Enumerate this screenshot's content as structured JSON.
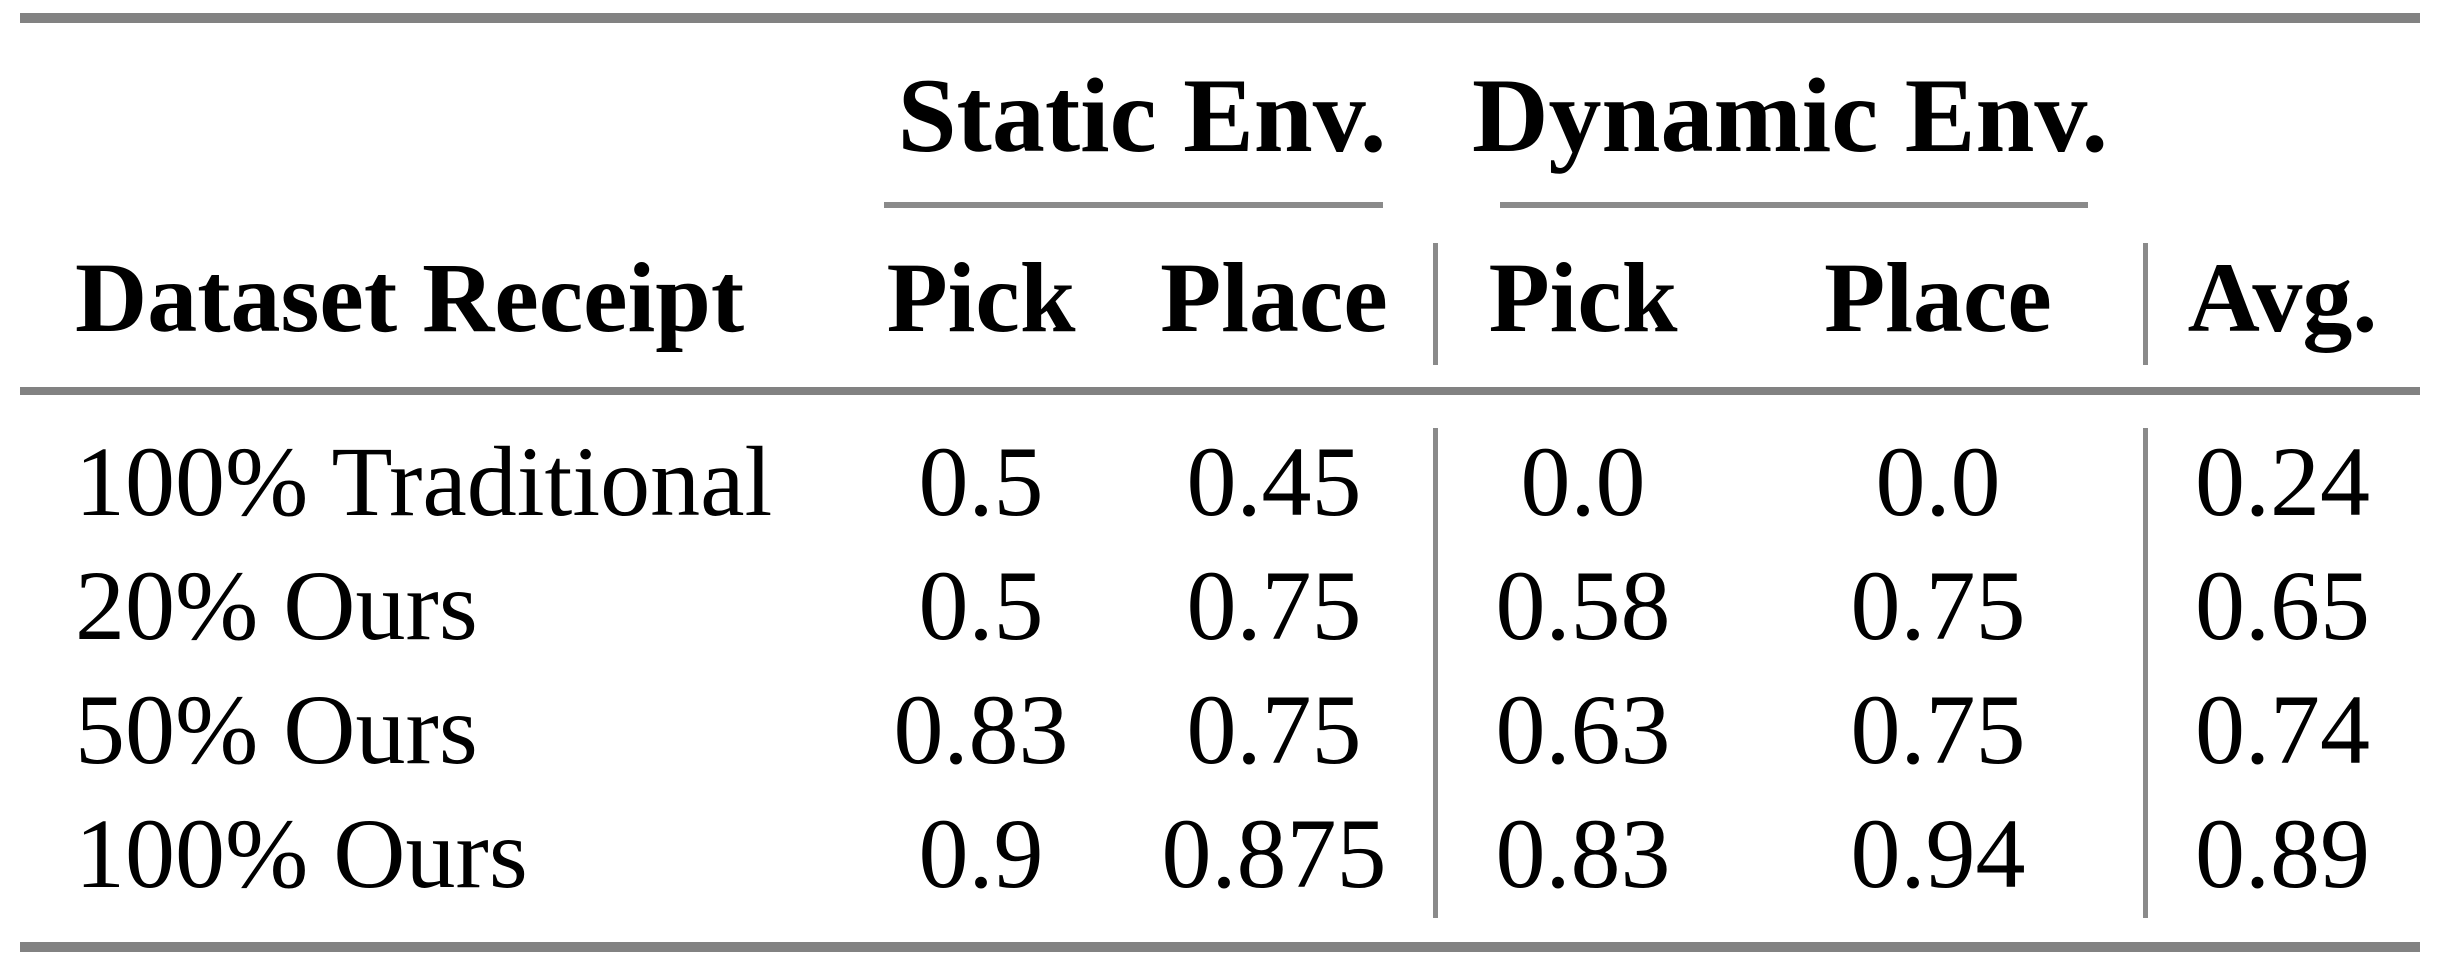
{
  "table": {
    "col_groups": {
      "static": "Static Env.",
      "dynamic": "Dynamic Env."
    },
    "header": {
      "row_label_col": "Dataset Receipt",
      "static_pick": "Pick",
      "static_place": "Place",
      "dynamic_pick": "Pick",
      "dynamic_place": "Place",
      "avg": "Avg."
    },
    "rows": [
      {
        "label": "100% Traditional",
        "static_pick": "0.5",
        "static_place": "0.45",
        "dynamic_pick": "0.0",
        "dynamic_place": "0.0",
        "avg": "0.24"
      },
      {
        "label": "20% Ours",
        "static_pick": "0.5",
        "static_place": "0.75",
        "dynamic_pick": "0.58",
        "dynamic_place": "0.75",
        "avg": "0.65"
      },
      {
        "label": "50% Ours",
        "static_pick": "0.83",
        "static_place": "0.75",
        "dynamic_pick": "0.63",
        "dynamic_place": "0.75",
        "avg": "0.74"
      },
      {
        "label": "100% Ours",
        "static_pick": "0.9",
        "static_place": "0.875",
        "dynamic_pick": "0.83",
        "dynamic_place": "0.94",
        "avg": "0.89"
      }
    ],
    "colors": {
      "rule_gray": "#828282",
      "separator_gray": "#8a8a8a",
      "text": "#000000",
      "background": "#ffffff"
    }
  }
}
